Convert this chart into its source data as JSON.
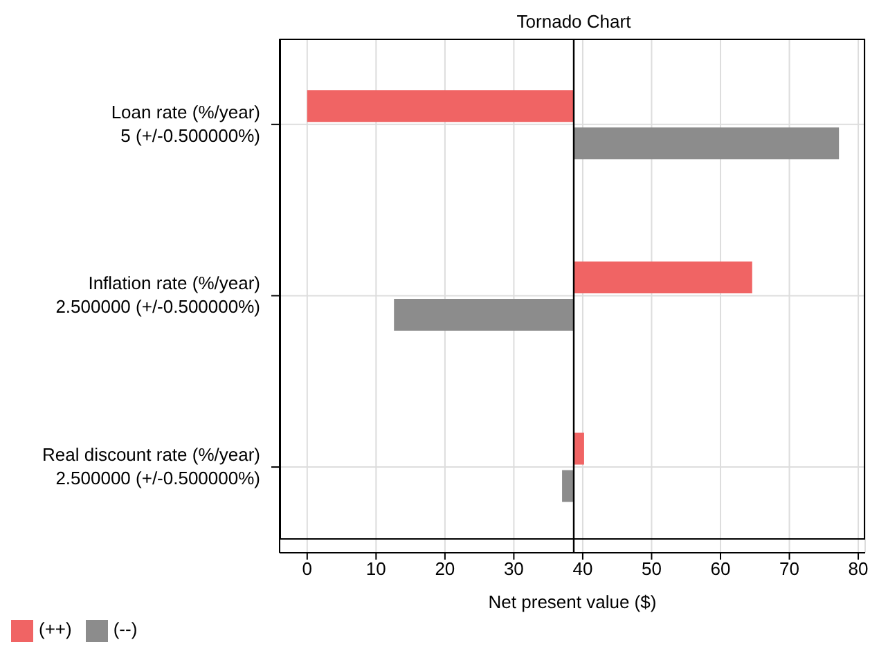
{
  "chart_data": {
    "type": "bar",
    "orientation": "horizontal",
    "title": "Tornado Chart",
    "xlabel": "Net present value ($)",
    "categories": [
      "Loan rate (%/year)\n5 (+/-0.500000%)",
      "Inflation rate (%/year)\n2.500000 (+/-0.500000%)",
      "Real discount rate (%/year)\n2.500000 (+/-0.500000%)"
    ],
    "series": [
      {
        "name": "(++)",
        "color": "#f06464",
        "base": [
          38.7,
          38.7,
          38.7
        ],
        "values": [
          -38.7,
          25.9,
          1.5
        ]
      },
      {
        "name": "(--)",
        "color": "#8c8c8c",
        "base": [
          38.7,
          38.7,
          38.7
        ],
        "values": [
          38.5,
          -26.1,
          -1.7
        ]
      }
    ],
    "xlim": [
      -4,
      81
    ],
    "xticks": [
      0,
      10,
      20,
      30,
      40,
      50,
      60,
      70,
      80
    ],
    "ref_lines": [
      {
        "axis": "x",
        "value": 38.7,
        "color": "#000000"
      }
    ],
    "grid": true,
    "legend": "bottom left"
  }
}
